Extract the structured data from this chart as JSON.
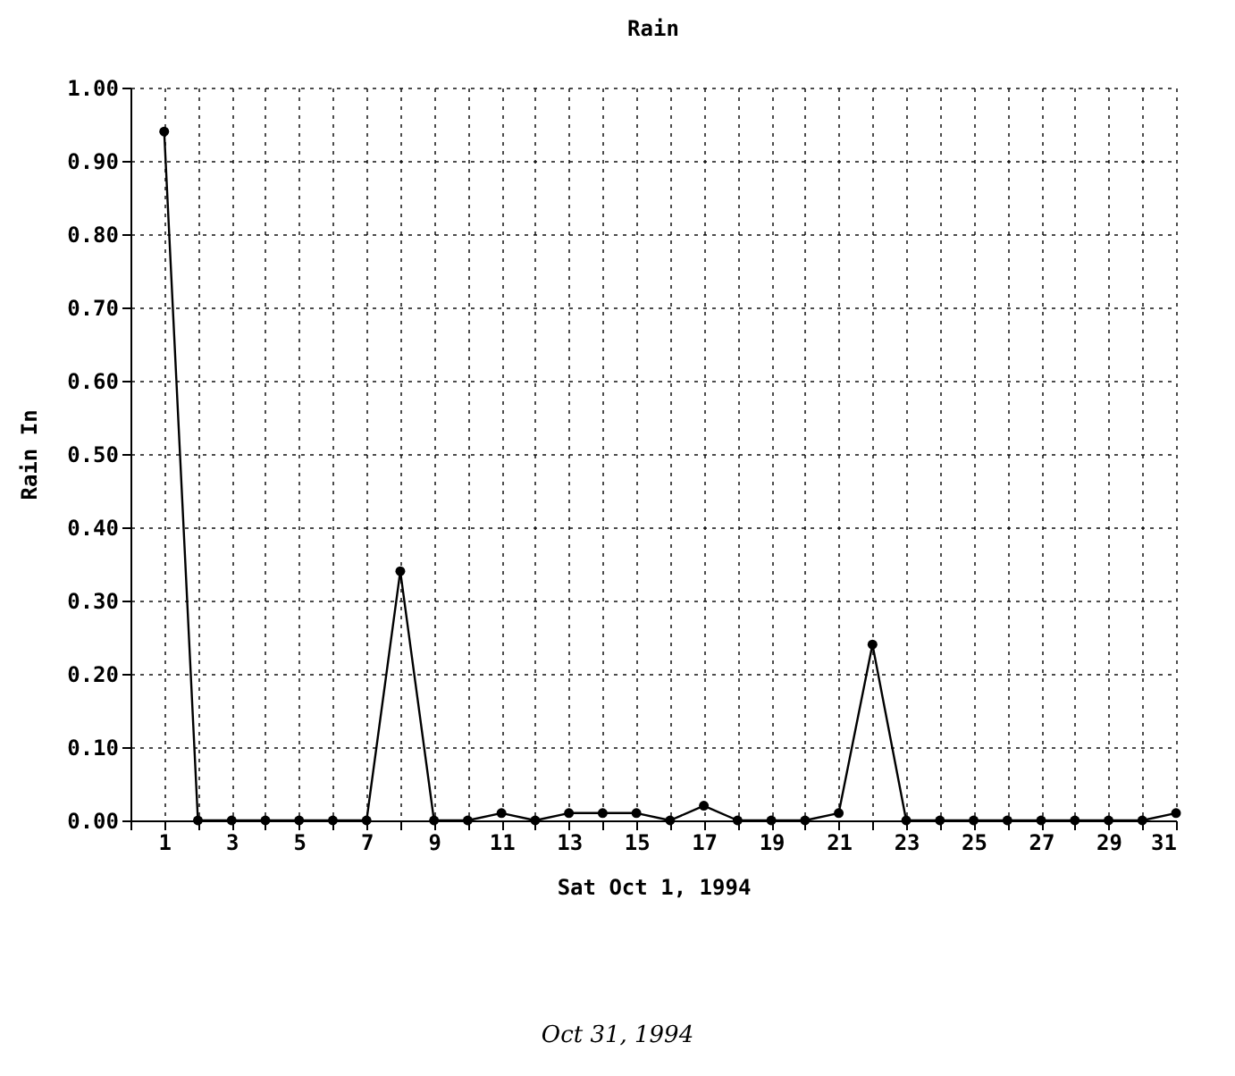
{
  "chart_data": {
    "type": "line",
    "title": "Rain",
    "xlabel": "Sat Oct  1, 1994",
    "ylabel": "Rain In",
    "annotations": [
      "Oct 31, 1994"
    ],
    "x": [
      1,
      2,
      3,
      4,
      5,
      6,
      7,
      8,
      9,
      10,
      11,
      12,
      13,
      14,
      15,
      16,
      17,
      18,
      19,
      20,
      21,
      22,
      23,
      24,
      25,
      26,
      27,
      28,
      29,
      30,
      31
    ],
    "series": [
      {
        "color": "#000000",
        "values": [
          0.94,
          0,
          0,
          0,
          0,
          0,
          0,
          0.34,
          0,
          0,
          0.01,
          0,
          0.01,
          0.01,
          0.01,
          0,
          0.02,
          0,
          0,
          0,
          0.01,
          0.24,
          0,
          0,
          0,
          0,
          0,
          0,
          0,
          0,
          0.01
        ]
      }
    ],
    "xlim": [
      0,
      31
    ],
    "xticks": [
      {
        "value": 0,
        "label": null
      },
      1,
      {
        "value": 2,
        "label": null
      },
      3,
      {
        "value": 4,
        "label": null
      },
      5,
      {
        "value": 6,
        "label": null
      },
      7,
      {
        "value": 8,
        "label": null
      },
      9,
      {
        "value": 10,
        "label": null
      },
      11,
      {
        "value": 12,
        "label": null
      },
      13,
      {
        "value": 14,
        "label": null
      },
      15,
      {
        "value": 16,
        "label": null
      },
      17,
      {
        "value": 18,
        "label": null
      },
      19,
      {
        "value": 20,
        "label": null
      },
      21,
      {
        "value": 22,
        "label": null
      },
      23,
      {
        "value": 24,
        "label": null
      },
      25,
      {
        "value": 26,
        "label": null
      },
      27,
      {
        "value": 28,
        "label": null
      },
      29,
      {
        "value": 30,
        "label": null
      },
      31
    ],
    "ylim": [
      0,
      1
    ],
    "yticks": [
      {
        "value": 0,
        "label": "0.00"
      },
      {
        "value": 0.1,
        "label": "0.10"
      },
      {
        "value": 0.2,
        "label": "0.20"
      },
      {
        "value": 0.3,
        "label": "0.30"
      },
      {
        "value": 0.4,
        "label": "0.40"
      },
      {
        "value": 0.5,
        "label": "0.50"
      },
      {
        "value": 0.6,
        "label": "0.60"
      },
      {
        "value": 0.7,
        "label": "0.70"
      },
      {
        "value": 0.8,
        "label": "0.80"
      },
      {
        "value": 0.9,
        "label": "0.90"
      },
      {
        "value": 1,
        "label": "1.00"
      }
    ],
    "grid": true,
    "marker": "circle",
    "line_style": "solid"
  }
}
